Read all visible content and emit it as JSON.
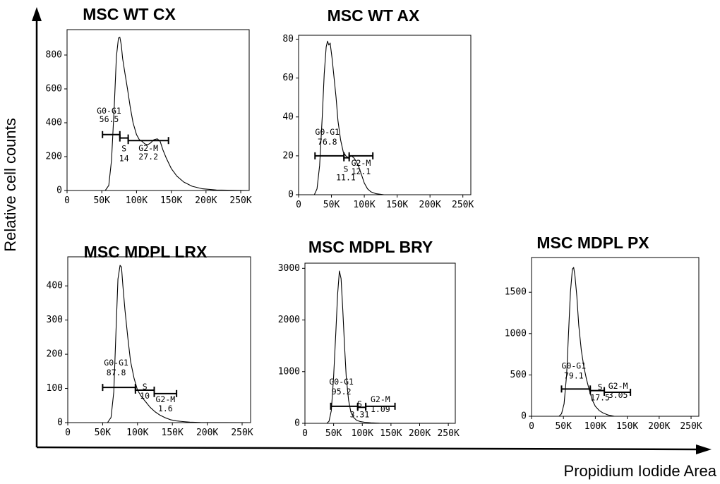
{
  "axes": {
    "x_title": "Propidium Iodide Area",
    "y_title": "Relative cell counts",
    "line_color": "#000000"
  },
  "chart_data": [
    {
      "type": "histogram",
      "title": "MSC WT CX",
      "xlim": [
        0,
        262144
      ],
      "ylim": [
        0,
        950
      ],
      "xticks": [
        0,
        50000,
        100000,
        150000,
        200000,
        250000
      ],
      "xtick_labels": [
        "0",
        "50K",
        "100K",
        "150K",
        "200K",
        "250K"
      ],
      "yticks": [
        0,
        200,
        400,
        600,
        800
      ],
      "curve_x": [
        0,
        55000,
        60000,
        64000,
        68000,
        71000,
        74000,
        76000,
        78000,
        80000,
        83000,
        87000,
        91000,
        95000,
        100000,
        104000,
        108000,
        112000,
        116000,
        120000,
        125000,
        130000,
        134000,
        138000,
        143000,
        150000,
        158000,
        168000,
        180000,
        195000,
        215000,
        262144
      ],
      "curve_y": [
        0,
        0,
        30,
        180,
        500,
        790,
        900,
        905,
        860,
        780,
        700,
        600,
        490,
        400,
        330,
        300,
        290,
        275,
        270,
        280,
        300,
        305,
        290,
        240,
        190,
        130,
        85,
        50,
        25,
        10,
        3,
        0
      ],
      "gates": [
        {
          "name": "G0-G1",
          "value": "56.5",
          "x0": 51000,
          "x1": 76000,
          "y": 330
        },
        {
          "name": "S",
          "value": "14",
          "x0": 76000,
          "x1": 88000,
          "y": 310
        },
        {
          "name": "G2-M",
          "value": "27.2",
          "x0": 88000,
          "x1": 146000,
          "y": 295
        }
      ]
    },
    {
      "type": "histogram",
      "title": "MSC WT AX",
      "xlim": [
        0,
        262144
      ],
      "ylim": [
        0,
        82
      ],
      "xticks": [
        0,
        50000,
        100000,
        150000,
        200000,
        250000
      ],
      "xtick_labels": [
        "0",
        "50K",
        "100K",
        "150K",
        "200K",
        "250K"
      ],
      "yticks": [
        0,
        20,
        40,
        60,
        80
      ],
      "curve_x": [
        0,
        24000,
        28000,
        32000,
        36000,
        39000,
        42000,
        44000,
        46000,
        48000,
        51000,
        54000,
        57000,
        60000,
        64000,
        68000,
        72000,
        76000,
        80000,
        84000,
        88000,
        92000,
        96000,
        100000,
        105000,
        110000,
        118000,
        130000,
        262144
      ],
      "curve_y": [
        0,
        0,
        3,
        15,
        40,
        62,
        76,
        79,
        77,
        78,
        70,
        60,
        50,
        38,
        28,
        22,
        20,
        19,
        20,
        19,
        17,
        14,
        10,
        6,
        3,
        1.5,
        0.5,
        0,
        0
      ],
      "gates": [
        {
          "name": "G0-G1",
          "value": "76.8",
          "x0": 25000,
          "x1": 69000,
          "y": 20
        },
        {
          "name": "S",
          "value": "11.1",
          "x0": 69000,
          "x1": 77000,
          "y": 19
        },
        {
          "name": "G2-M",
          "value": "12.1",
          "x0": 77000,
          "x1": 113000,
          "y": 20
        }
      ]
    },
    {
      "type": "histogram",
      "title": "MSC MDPL LRX",
      "xlim": [
        0,
        262144
      ],
      "ylim": [
        0,
        485
      ],
      "xticks": [
        0,
        50000,
        100000,
        150000,
        200000,
        250000
      ],
      "xtick_labels": [
        "0",
        "50K",
        "100K",
        "150K",
        "200K",
        "250K"
      ],
      "yticks": [
        0,
        100,
        200,
        300,
        400
      ],
      "curve_x": [
        0,
        57000,
        62000,
        66000,
        69000,
        72000,
        75000,
        77000,
        79000,
        82000,
        86000,
        90000,
        95000,
        100000,
        106000,
        112000,
        118000,
        125000,
        132000,
        140000,
        148000,
        156000,
        165000,
        175000,
        190000,
        262144
      ],
      "curve_y": [
        0,
        0,
        15,
        90,
        260,
        420,
        460,
        455,
        400,
        330,
        250,
        180,
        130,
        95,
        75,
        60,
        45,
        32,
        22,
        14,
        8,
        5,
        3,
        1.5,
        0.5,
        0
      ],
      "gates": [
        {
          "name": "G0-G1",
          "value": "87.8",
          "x0": 50000,
          "x1": 97000,
          "y": 103
        },
        {
          "name": "S",
          "value": "10",
          "x0": 97000,
          "x1": 124000,
          "y": 95
        },
        {
          "name": "G2-M",
          "value": "1.6",
          "x0": 124000,
          "x1": 156000,
          "y": 85
        }
      ]
    },
    {
      "type": "histogram",
      "title": "MSC MDPL BRY",
      "xlim": [
        0,
        262144
      ],
      "ylim": [
        0,
        3100
      ],
      "xticks": [
        0,
        50000,
        100000,
        150000,
        200000,
        250000
      ],
      "xtick_labels": [
        "0",
        "50K",
        "100K",
        "150K",
        "200K",
        "250K"
      ],
      "yticks": [
        0,
        1000,
        2000,
        3000
      ],
      "curve_x": [
        0,
        38000,
        42000,
        46000,
        50000,
        54000,
        57000,
        60000,
        63000,
        66000,
        69000,
        72000,
        76000,
        80000,
        85000,
        90000,
        96000,
        104000,
        115000,
        130000,
        262144
      ],
      "curve_y": [
        0,
        0,
        40,
        250,
        900,
        1800,
        2500,
        2950,
        2800,
        2200,
        1500,
        900,
        450,
        220,
        110,
        60,
        35,
        20,
        10,
        3,
        0
      ],
      "gates": [
        {
          "name": "G0-G1",
          "value": "95.2",
          "x0": 45000,
          "x1": 92000,
          "y": 330
        },
        {
          "name": "S",
          "value": "3.31",
          "x0": 92000,
          "x1": 106000,
          "y": 310
        },
        {
          "name": "G2-M",
          "value": "1.09",
          "x0": 106000,
          "x1": 157000,
          "y": 330
        }
      ]
    },
    {
      "type": "histogram",
      "title": "MSC MDPL PX",
      "xlim": [
        0,
        262144
      ],
      "ylim": [
        0,
        1920
      ],
      "xticks": [
        0,
        50000,
        100000,
        150000,
        200000,
        250000
      ],
      "xtick_labels": [
        "0",
        "50K",
        "100K",
        "150K",
        "200K",
        "250K"
      ],
      "yticks": [
        0,
        500,
        1000,
        1500
      ],
      "curve_x": [
        0,
        43000,
        47000,
        51000,
        55000,
        58000,
        61000,
        64000,
        66000,
        68000,
        71000,
        74000,
        78000,
        82000,
        86000,
        90000,
        95000,
        100000,
        106000,
        112000,
        120000,
        130000,
        262144
      ],
      "curve_y": [
        0,
        0,
        30,
        150,
        500,
        1000,
        1500,
        1780,
        1800,
        1700,
        1450,
        1100,
        800,
        600,
        450,
        330,
        200,
        120,
        70,
        40,
        15,
        0,
        0
      ],
      "gates": [
        {
          "name": "G0-G1",
          "value": "79.1",
          "x0": 47000,
          "x1": 92000,
          "y": 330
        },
        {
          "name": "S",
          "value": "17.5",
          "x0": 92000,
          "x1": 114000,
          "y": 310
        },
        {
          "name": "G2-M",
          "value": "3.05",
          "x0": 114000,
          "x1": 155000,
          "y": 290
        }
      ]
    }
  ]
}
